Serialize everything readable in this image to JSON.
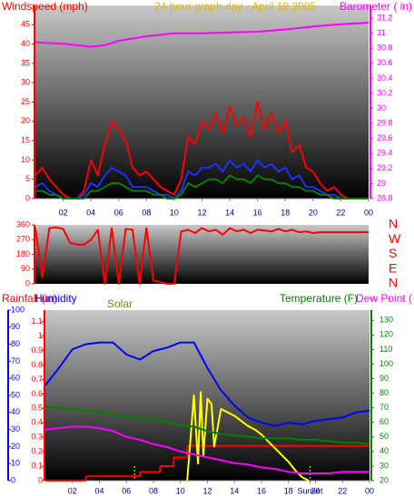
{
  "chart_data": [
    {
      "type": "line",
      "title": "24 hour graph day - April 19 2005",
      "ylabel": "Windspeed (mph)",
      "y2label": "Barometer ( in)",
      "title_color": "#e8b400",
      "ylabel_color": "#ff0000",
      "y2label_color": "#ff00ff",
      "axis_colors": {
        "y": "#ff0000",
        "y2": "#ff00ff",
        "x": "#000090"
      },
      "xlim": [
        0,
        24
      ],
      "xticks": [
        {
          "value": 2,
          "label": "02"
        },
        {
          "value": 4,
          "label": "04"
        },
        {
          "value": 6,
          "label": "06"
        },
        {
          "value": 8,
          "label": "08"
        },
        10,
        12,
        14,
        16,
        18,
        20,
        22,
        {
          "value": 24,
          "label": "00"
        }
      ],
      "ylim": [
        0,
        50
      ],
      "yticks": [
        0,
        5,
        10,
        15,
        20,
        25,
        30,
        35,
        40,
        45
      ],
      "y2lim": [
        28.8,
        31.37
      ],
      "y2ticks": [
        28.8,
        29,
        29.2,
        29.4,
        29.6,
        29.8,
        30,
        30.2,
        30.4,
        30.6,
        30.8,
        31,
        31.2
      ],
      "series": [
        {
          "color": "#ff0000",
          "axis": "y",
          "x": [
            0,
            0.5,
            1,
            1.5,
            2,
            2.5,
            3,
            3.5,
            4,
            4.5,
            5,
            5.5,
            6,
            6.5,
            7,
            7.5,
            8,
            8.5,
            9,
            9.5,
            10,
            10.5,
            11,
            11.5,
            12,
            12.5,
            13,
            13.5,
            14,
            14.5,
            15,
            15.5,
            16,
            16.5,
            17,
            17.5,
            18,
            18.5,
            19,
            19.5,
            20,
            20.5,
            21,
            21.5,
            22,
            22.5,
            23,
            23.5,
            24
          ],
          "values": [
            6,
            8,
            5,
            3,
            1,
            0,
            0,
            2,
            10,
            6,
            14,
            20,
            18,
            15,
            8,
            6,
            7,
            5,
            3,
            2,
            1,
            5,
            16,
            14,
            20,
            18,
            22,
            17,
            24,
            19,
            21,
            16,
            25,
            18,
            22,
            17,
            20,
            12,
            14,
            8,
            7,
            4,
            2,
            3,
            1,
            0,
            0,
            0,
            0
          ]
        },
        {
          "color": "#2030ff",
          "axis": "y",
          "x": [
            0,
            0.5,
            1,
            1.5,
            2,
            2.5,
            3,
            3.5,
            4,
            4.5,
            5,
            5.5,
            6,
            6.5,
            7,
            7.5,
            8,
            8.5,
            9,
            9.5,
            10,
            10.5,
            11,
            11.5,
            12,
            12.5,
            13,
            13.5,
            14,
            14.5,
            15,
            15.5,
            16,
            16.5,
            17,
            17.5,
            18,
            18.5,
            19,
            19.5,
            20,
            20.5,
            21,
            21.5,
            22,
            22.5,
            23,
            23.5,
            24
          ],
          "values": [
            3,
            4,
            2,
            1,
            0,
            0,
            0,
            1,
            4,
            3,
            6,
            8,
            7,
            6,
            3,
            3,
            3,
            2,
            1,
            1,
            0,
            2,
            7,
            6,
            8,
            8,
            9,
            7,
            10,
            8,
            9,
            7,
            10,
            8,
            9,
            7,
            8,
            5,
            6,
            3,
            3,
            2,
            1,
            1,
            0,
            0,
            0,
            0,
            0
          ]
        },
        {
          "color": "#008000",
          "axis": "y",
          "x": [
            0,
            0.5,
            1,
            1.5,
            2,
            2.5,
            3,
            3.5,
            4,
            4.5,
            5,
            5.5,
            6,
            6.5,
            7,
            7.5,
            8,
            8.5,
            9,
            9.5,
            10,
            10.5,
            11,
            11.5,
            12,
            12.5,
            13,
            13.5,
            14,
            14.5,
            15,
            15.5,
            16,
            16.5,
            17,
            17.5,
            18,
            18.5,
            19,
            19.5,
            20,
            20.5,
            21,
            21.5,
            22,
            22.5,
            23,
            23.5,
            24
          ],
          "values": [
            2,
            2,
            1,
            1,
            0,
            0,
            0,
            0,
            2,
            2,
            3,
            4,
            4,
            3,
            2,
            2,
            2,
            1,
            1,
            0,
            0,
            1,
            4,
            3,
            4,
            5,
            5,
            4,
            6,
            5,
            5,
            4,
            6,
            5,
            5,
            4,
            4,
            3,
            3,
            2,
            2,
            1,
            1,
            0,
            0,
            0,
            0,
            0,
            0
          ]
        },
        {
          "color": "#ff00ff",
          "axis": "y2",
          "x": [
            0,
            2,
            3,
            4,
            5,
            6,
            8,
            10,
            12,
            14,
            16,
            18,
            20,
            22,
            24
          ],
          "values": [
            30.88,
            30.86,
            30.84,
            30.82,
            30.84,
            30.9,
            30.96,
            31.0,
            31.0,
            31.01,
            31.02,
            31.05,
            31.09,
            31.12,
            31.14
          ]
        }
      ]
    },
    {
      "type": "line",
      "axis_colors": {
        "y": "#ff0000",
        "y2": "#ff0000"
      },
      "xlim": [
        0,
        24
      ],
      "ylim": [
        0,
        360
      ],
      "yticks": [
        0,
        90,
        180,
        270,
        360
      ],
      "y2lim": [
        0,
        360
      ],
      "y2ticks": [
        {
          "value": 360,
          "label": "N"
        },
        {
          "value": 270,
          "label": "W"
        },
        {
          "value": 180,
          "label": "S"
        },
        {
          "value": 90,
          "label": "E"
        },
        {
          "value": 0,
          "label": "N"
        }
      ],
      "series": [
        {
          "color": "#ff0000",
          "axis": "y",
          "x": [
            0,
            0.5,
            1,
            1.5,
            2,
            2.5,
            3,
            3.5,
            4,
            4.5,
            5,
            5.5,
            6,
            6.5,
            7,
            7.5,
            8,
            8.5,
            9,
            9.5,
            10,
            10.5,
            11,
            11.5,
            12,
            12.5,
            13,
            13.5,
            14,
            14.5,
            15,
            15.5,
            16,
            16.5,
            17,
            17.5,
            18,
            18.5,
            19,
            19.5,
            20,
            20.5,
            21,
            21.5,
            22,
            22.5,
            23,
            23.5,
            24
          ],
          "values": [
            340,
            40,
            340,
            345,
            335,
            250,
            240,
            240,
            270,
            330,
            0,
            340,
            0,
            335,
            330,
            0,
            340,
            20,
            10,
            0,
            0,
            320,
            330,
            310,
            340,
            320,
            330,
            300,
            340,
            320,
            330,
            310,
            330,
            325,
            320,
            335,
            320,
            330,
            315,
            320,
            310,
            315,
            315,
            315,
            315,
            315,
            315,
            315,
            315
          ]
        }
      ]
    },
    {
      "type": "line",
      "axis_colors": {
        "y": "#0000ff",
        "y3": "#ff0000",
        "y2": "#008000",
        "x": "#000090"
      },
      "xlim": [
        0,
        24
      ],
      "xticks": [
        {
          "value": 2,
          "label": "02"
        },
        {
          "value": 4,
          "label": "04"
        },
        {
          "value": 6,
          "label": "06"
        },
        {
          "value": 8,
          "label": "08"
        },
        10,
        12,
        14,
        16,
        18,
        {
          "value": 19.6,
          "label": "Sunset"
        },
        20,
        22,
        {
          "value": 24,
          "label": "00"
        }
      ],
      "ylim": [
        0,
        100
      ],
      "yticks": [
        0,
        10,
        20,
        30,
        40,
        50,
        60,
        70,
        80,
        90,
        100
      ],
      "y3lim": [
        0,
        1.18
      ],
      "y3ticks": [
        0,
        0.1,
        0.2,
        0.3,
        0.4,
        0.5,
        0.6,
        0.7,
        0.8,
        0.9,
        1,
        1.1
      ],
      "y2lim": [
        20,
        137
      ],
      "y2ticks": [
        20,
        30,
        40,
        50,
        60,
        70,
        80,
        90,
        100,
        110,
        120,
        130
      ],
      "sunrise_x": 6.6,
      "sunset_x": 19.6,
      "series": [
        {
          "name": "Rainfall (in)",
          "color": "#ff0000",
          "axis": "y3",
          "step": true,
          "x": [
            0,
            3,
            7,
            8.5,
            9.5,
            10.5,
            24
          ],
          "values": [
            0,
            0.03,
            0.06,
            0.1,
            0.16,
            0.24,
            0.24
          ]
        },
        {
          "name": "Humidity",
          "color": "#0000ff",
          "axis": "y",
          "x": [
            0,
            1,
            2,
            3,
            4,
            5,
            6,
            7,
            8,
            9,
            10,
            11,
            12,
            13,
            14,
            15,
            16,
            17,
            18,
            19,
            20,
            21,
            22,
            23,
            24
          ],
          "values": [
            56,
            66,
            77,
            80,
            81,
            81,
            74,
            71,
            76,
            78,
            81,
            81,
            66,
            53,
            44,
            37,
            34,
            32,
            34,
            33,
            35,
            36,
            37,
            40,
            41
          ]
        },
        {
          "name": "Solar",
          "color": "#ffff00",
          "axis": "y",
          "x": [
            10.5,
            11,
            11.3,
            11.5,
            11.7,
            12,
            12.3,
            12.5,
            13,
            13.5,
            14,
            14.5,
            15,
            15.5,
            16,
            16.5,
            17,
            17.5,
            18,
            18.5,
            19,
            19.5
          ],
          "values": [
            0,
            50,
            10,
            52,
            15,
            48,
            45,
            20,
            42,
            40,
            38,
            35,
            32,
            30,
            27,
            23,
            19,
            15,
            11,
            6,
            2,
            0
          ]
        },
        {
          "name": "Temperature (F)",
          "color": "#008000",
          "axis": "y2",
          "x": [
            0,
            1,
            2,
            3,
            4,
            5,
            6,
            7,
            8,
            9,
            10,
            11,
            12,
            13,
            14,
            15,
            16,
            17,
            18,
            19,
            20,
            21,
            22,
            23,
            24
          ],
          "values": [
            71,
            70,
            69,
            68,
            67,
            65,
            64,
            63,
            62,
            60,
            58,
            57,
            54,
            52,
            51,
            50,
            49,
            49,
            49,
            48,
            48,
            47,
            46,
            46,
            45
          ]
        },
        {
          "name": "Dew Point (",
          "color": "#ff00ff",
          "axis": "y2",
          "x": [
            0,
            1,
            2,
            3,
            4,
            5,
            6,
            7,
            8,
            9,
            10,
            11,
            12,
            13,
            14,
            15,
            16,
            17,
            18,
            19,
            20,
            21,
            22,
            23,
            24
          ],
          "values": [
            55,
            56,
            57,
            57,
            56,
            54,
            50,
            48,
            45,
            43,
            40,
            38,
            36,
            34,
            32,
            31,
            29,
            28,
            26,
            25,
            25,
            25,
            26,
            26,
            26
          ]
        }
      ]
    }
  ]
}
